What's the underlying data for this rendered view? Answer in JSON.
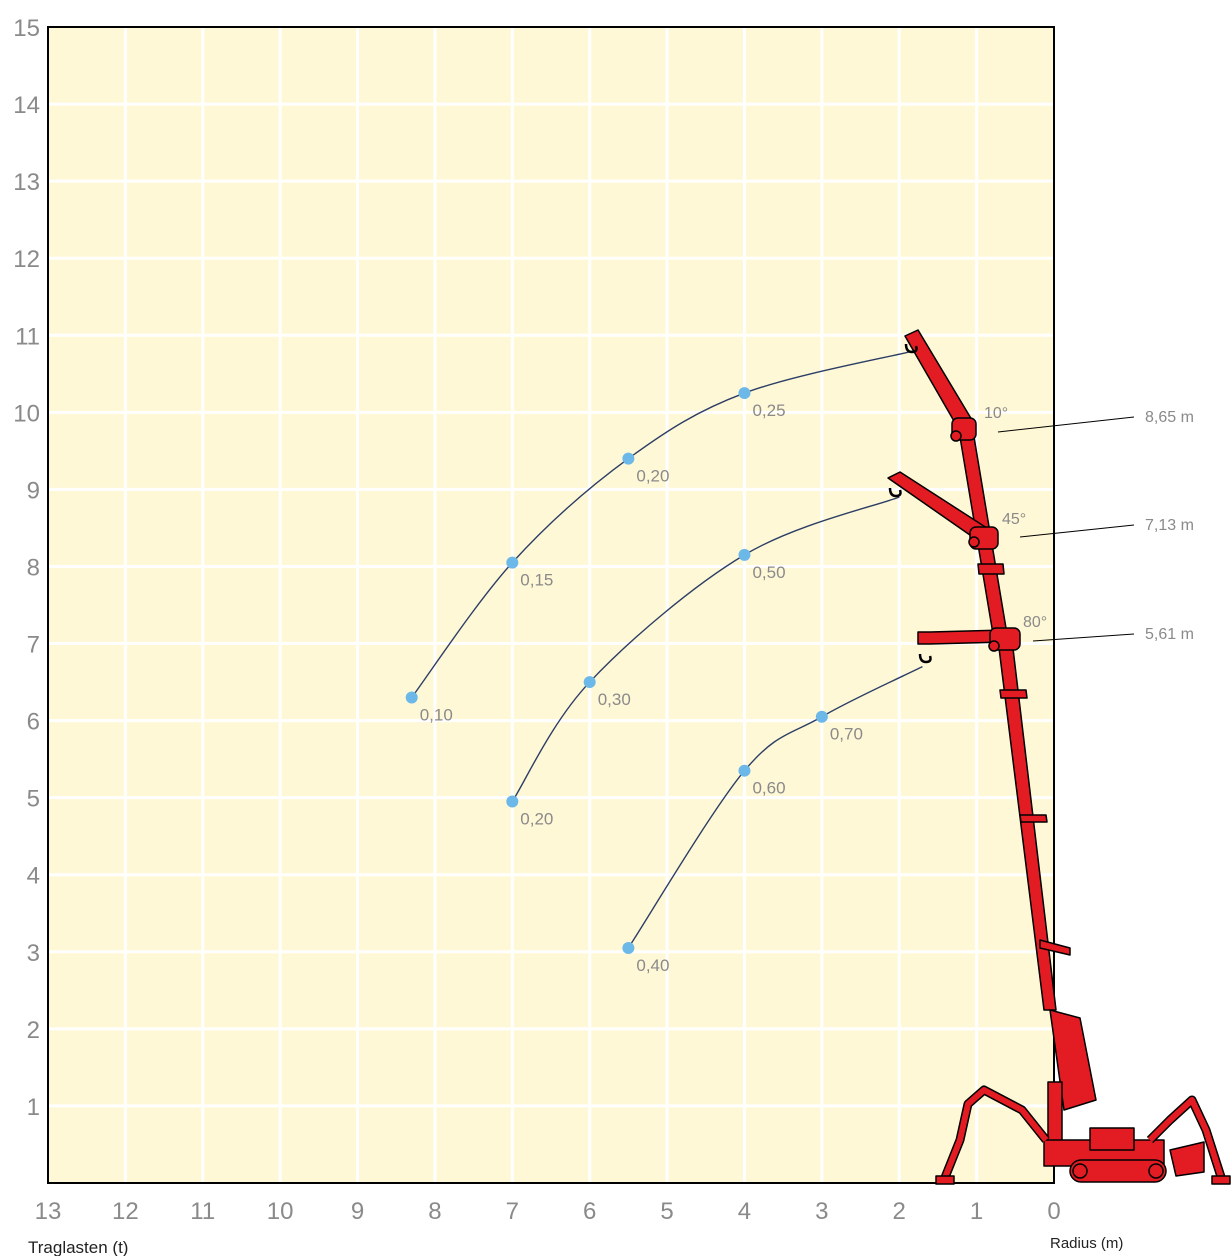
{
  "chart_data": {
    "type": "line",
    "title": "",
    "xlabel": "Radius (m)",
    "ylabel": "Traglasten (t)",
    "xlim": [
      13,
      0
    ],
    "ylim": [
      0,
      15
    ],
    "x_ticks": [
      "13",
      "12",
      "11",
      "10",
      "9",
      "8",
      "7",
      "6",
      "5",
      "4",
      "3",
      "2",
      "1",
      "0"
    ],
    "y_ticks": [
      "1",
      "2",
      "3",
      "4",
      "5",
      "6",
      "7",
      "8",
      "9",
      "10",
      "11",
      "12",
      "13",
      "14",
      "15"
    ],
    "grid": true,
    "series": [
      {
        "points": [
          {
            "x": 8.3,
            "y": 6.3,
            "label": "0,10"
          },
          {
            "x": 7.0,
            "y": 8.05,
            "label": "0,15"
          },
          {
            "x": 5.5,
            "y": 9.4,
            "label": "0,20"
          },
          {
            "x": 4.0,
            "y": 10.25,
            "label": "0,25"
          }
        ],
        "curve_end": {
          "x": 1.8,
          "y": 10.8
        }
      },
      {
        "points": [
          {
            "x": 7.0,
            "y": 4.95,
            "label": "0,20"
          },
          {
            "x": 6.0,
            "y": 6.5,
            "label": "0,30"
          },
          {
            "x": 4.0,
            "y": 8.15,
            "label": "0,50"
          }
        ],
        "curve_end": {
          "x": 2.0,
          "y": 8.9
        }
      },
      {
        "points": [
          {
            "x": 5.5,
            "y": 3.05,
            "label": "0,40"
          },
          {
            "x": 4.0,
            "y": 5.35,
            "label": "0,60"
          },
          {
            "x": 3.0,
            "y": 6.05,
            "label": "0,70"
          }
        ],
        "curve_end": {
          "x": 1.7,
          "y": 6.7
        }
      }
    ],
    "annotations": [
      {
        "angle": "10°",
        "length": "8,65 m"
      },
      {
        "angle": "45°",
        "length": "7,13 m"
      },
      {
        "angle": "80°",
        "length": "5,61 m"
      }
    ],
    "colors": {
      "plot_background": "#fff8d6",
      "grid": "#ffffff",
      "curve": "#2c3e66",
      "point": "#6cb8e8",
      "crane": "#e31c24",
      "text": "#8a8a8a"
    }
  }
}
